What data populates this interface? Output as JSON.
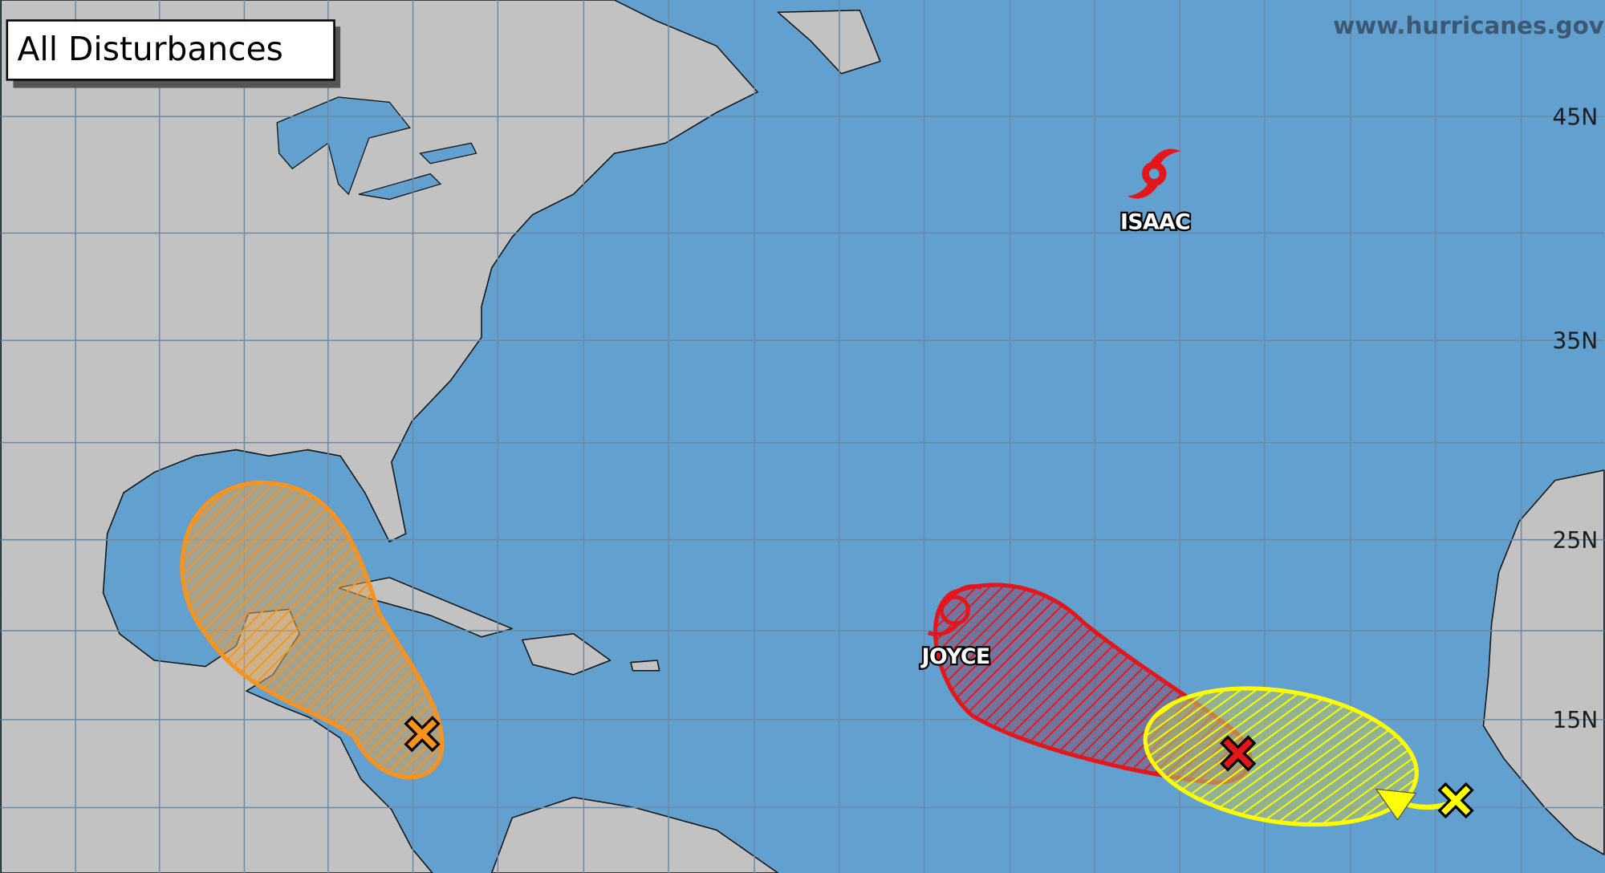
{
  "header": {
    "title": "All Disturbances",
    "source": "www.hurricanes.gov"
  },
  "latitude_labels": [
    "45N",
    "35N",
    "25N",
    "15N"
  ],
  "storms": [
    {
      "name": "ISAAC"
    },
    {
      "name": "JOYCE"
    }
  ]
}
